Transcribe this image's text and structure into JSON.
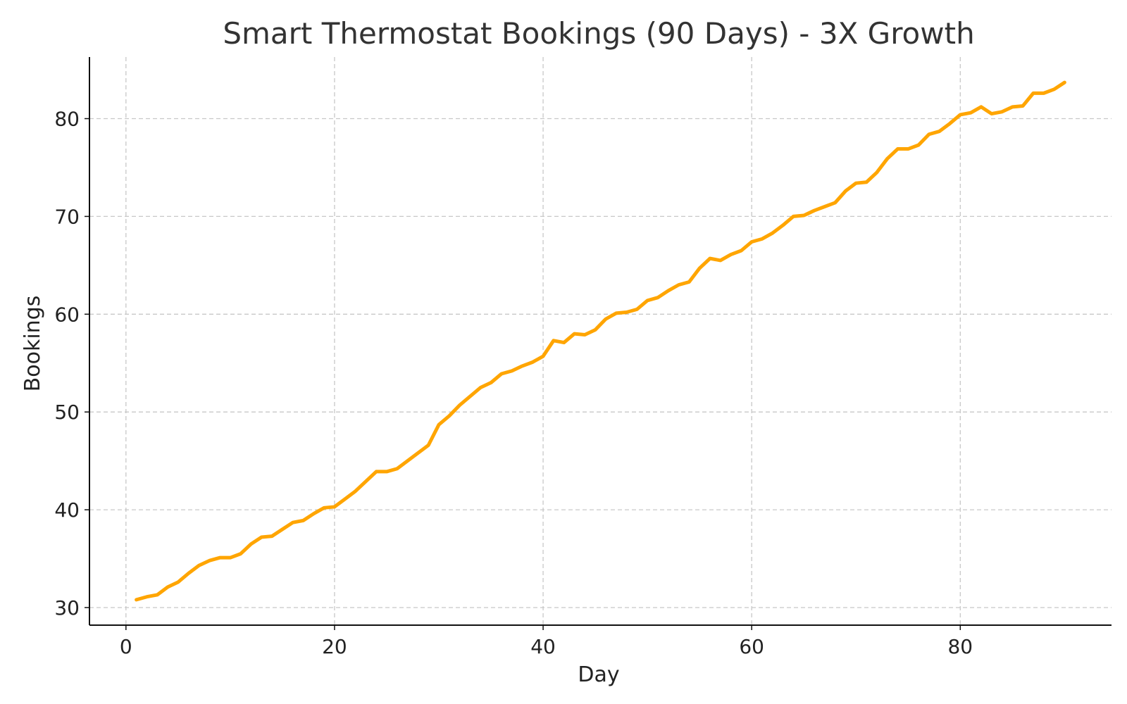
{
  "chart_data": {
    "type": "line",
    "title": "Smart Thermostat Bookings (90 Days) - 3X Growth",
    "xlabel": "Day",
    "ylabel": "Bookings",
    "xlim": [
      -3.5,
      94.5
    ],
    "ylim": [
      28.2,
      86.3
    ],
    "xticks": [
      0,
      20,
      40,
      60,
      80
    ],
    "yticks": [
      30,
      40,
      50,
      60,
      70,
      80
    ],
    "grid": true,
    "legend": "none",
    "series": [
      {
        "color": "#FFA500",
        "x": [
          1,
          2,
          3,
          4,
          5,
          6,
          7,
          8,
          9,
          10,
          11,
          12,
          13,
          14,
          15,
          16,
          17,
          18,
          19,
          20,
          21,
          22,
          23,
          24,
          25,
          26,
          27,
          28,
          29,
          30,
          31,
          32,
          33,
          34,
          35,
          36,
          37,
          38,
          39,
          40,
          41,
          42,
          43,
          44,
          45,
          46,
          47,
          48,
          49,
          50,
          51,
          52,
          53,
          54,
          55,
          56,
          57,
          58,
          59,
          60,
          61,
          62,
          63,
          64,
          65,
          66,
          67,
          68,
          69,
          70,
          71,
          72,
          73,
          74,
          75,
          76,
          77,
          78,
          79,
          80,
          81,
          82,
          83,
          84,
          85,
          86,
          87,
          88,
          89,
          90
        ],
        "y": [
          30.8,
          31.1,
          31.3,
          32.1,
          32.6,
          33.5,
          34.3,
          34.8,
          35.1,
          35.1,
          35.5,
          36.5,
          37.2,
          37.3,
          38.0,
          38.7,
          38.9,
          39.6,
          40.2,
          40.3,
          41.1,
          41.9,
          42.9,
          43.9,
          43.9,
          44.2,
          45.0,
          45.8,
          46.6,
          48.7,
          49.6,
          50.7,
          51.6,
          52.5,
          53.0,
          53.9,
          54.2,
          54.7,
          55.1,
          55.7,
          57.3,
          57.1,
          58.0,
          57.9,
          58.4,
          59.5,
          60.1,
          60.2,
          60.5,
          61.4,
          61.7,
          62.4,
          63.0,
          63.3,
          64.7,
          65.7,
          65.5,
          66.1,
          66.5,
          67.4,
          67.7,
          68.3,
          69.1,
          70.0,
          70.1,
          70.6,
          71.0,
          71.4,
          72.6,
          73.4,
          73.5,
          74.5,
          75.9,
          76.9,
          76.9,
          77.3,
          78.4,
          78.7,
          79.5,
          80.4,
          80.6,
          81.2,
          80.5,
          80.7,
          81.2,
          81.3,
          82.6,
          82.6,
          83.0,
          83.7
        ]
      }
    ]
  }
}
